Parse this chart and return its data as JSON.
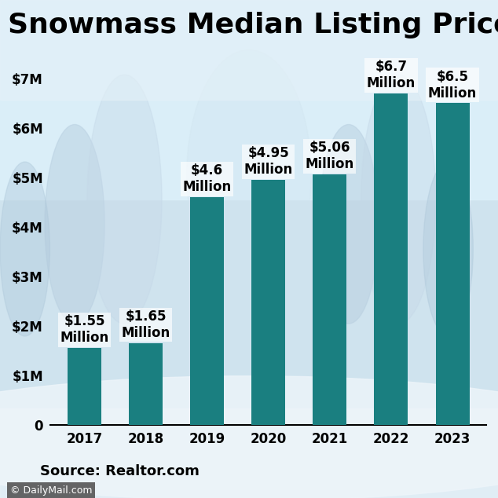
{
  "title": "Snowmass Median Listing Prices",
  "categories": [
    "2017",
    "2018",
    "2019",
    "2020",
    "2021",
    "2022",
    "2023"
  ],
  "values": [
    1550000,
    1650000,
    4600000,
    4950000,
    5060000,
    6700000,
    6500000
  ],
  "labels": [
    "$1.55\nMillion",
    "$1.65\nMillion",
    "$4.6\nMillion",
    "$4.95\nMillion",
    "$5.06\nMillion",
    "$6.7\nMillion",
    "$6.5\nMillion"
  ],
  "bar_color": "#1a7f80",
  "bg_top_color": "#ddeef5",
  "bg_bottom_color": "#c8dce8",
  "title_fontsize": 26,
  "bar_label_fontsize": 12,
  "yticks": [
    0,
    1000000,
    2000000,
    3000000,
    4000000,
    5000000,
    6000000,
    7000000
  ],
  "ytick_labels": [
    "0",
    "$1M",
    "$2M",
    "$3M",
    "$4M",
    "$5M",
    "$6M",
    "$7M"
  ],
  "ylim": [
    0,
    7700000
  ],
  "source_text": "Source: Realtor.com",
  "watermark_text": "© DailyMail.com",
  "bar_width": 0.55
}
